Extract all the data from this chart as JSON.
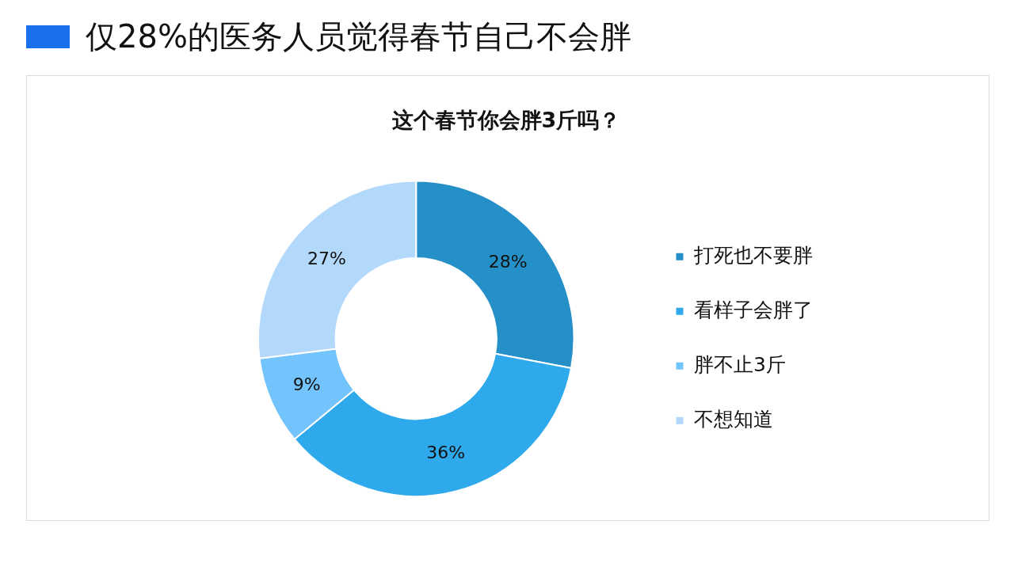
{
  "chart_data": {
    "type": "donut",
    "title": "仅28%的医务人员觉得春节自己不会胖",
    "subtitle": "这个春节你会胖3斤吗？",
    "categories": [
      "打死也不要胖",
      "看样子会胖了",
      "胖不止3斤",
      "不想知道"
    ],
    "values": [
      28,
      36,
      9,
      27
    ],
    "colors": [
      "#258fc7",
      "#2eaaec",
      "#73c4fc",
      "#b2d8fb"
    ],
    "value_labels": [
      "28%",
      "36%",
      "9%",
      "27%"
    ],
    "legend": "right"
  }
}
